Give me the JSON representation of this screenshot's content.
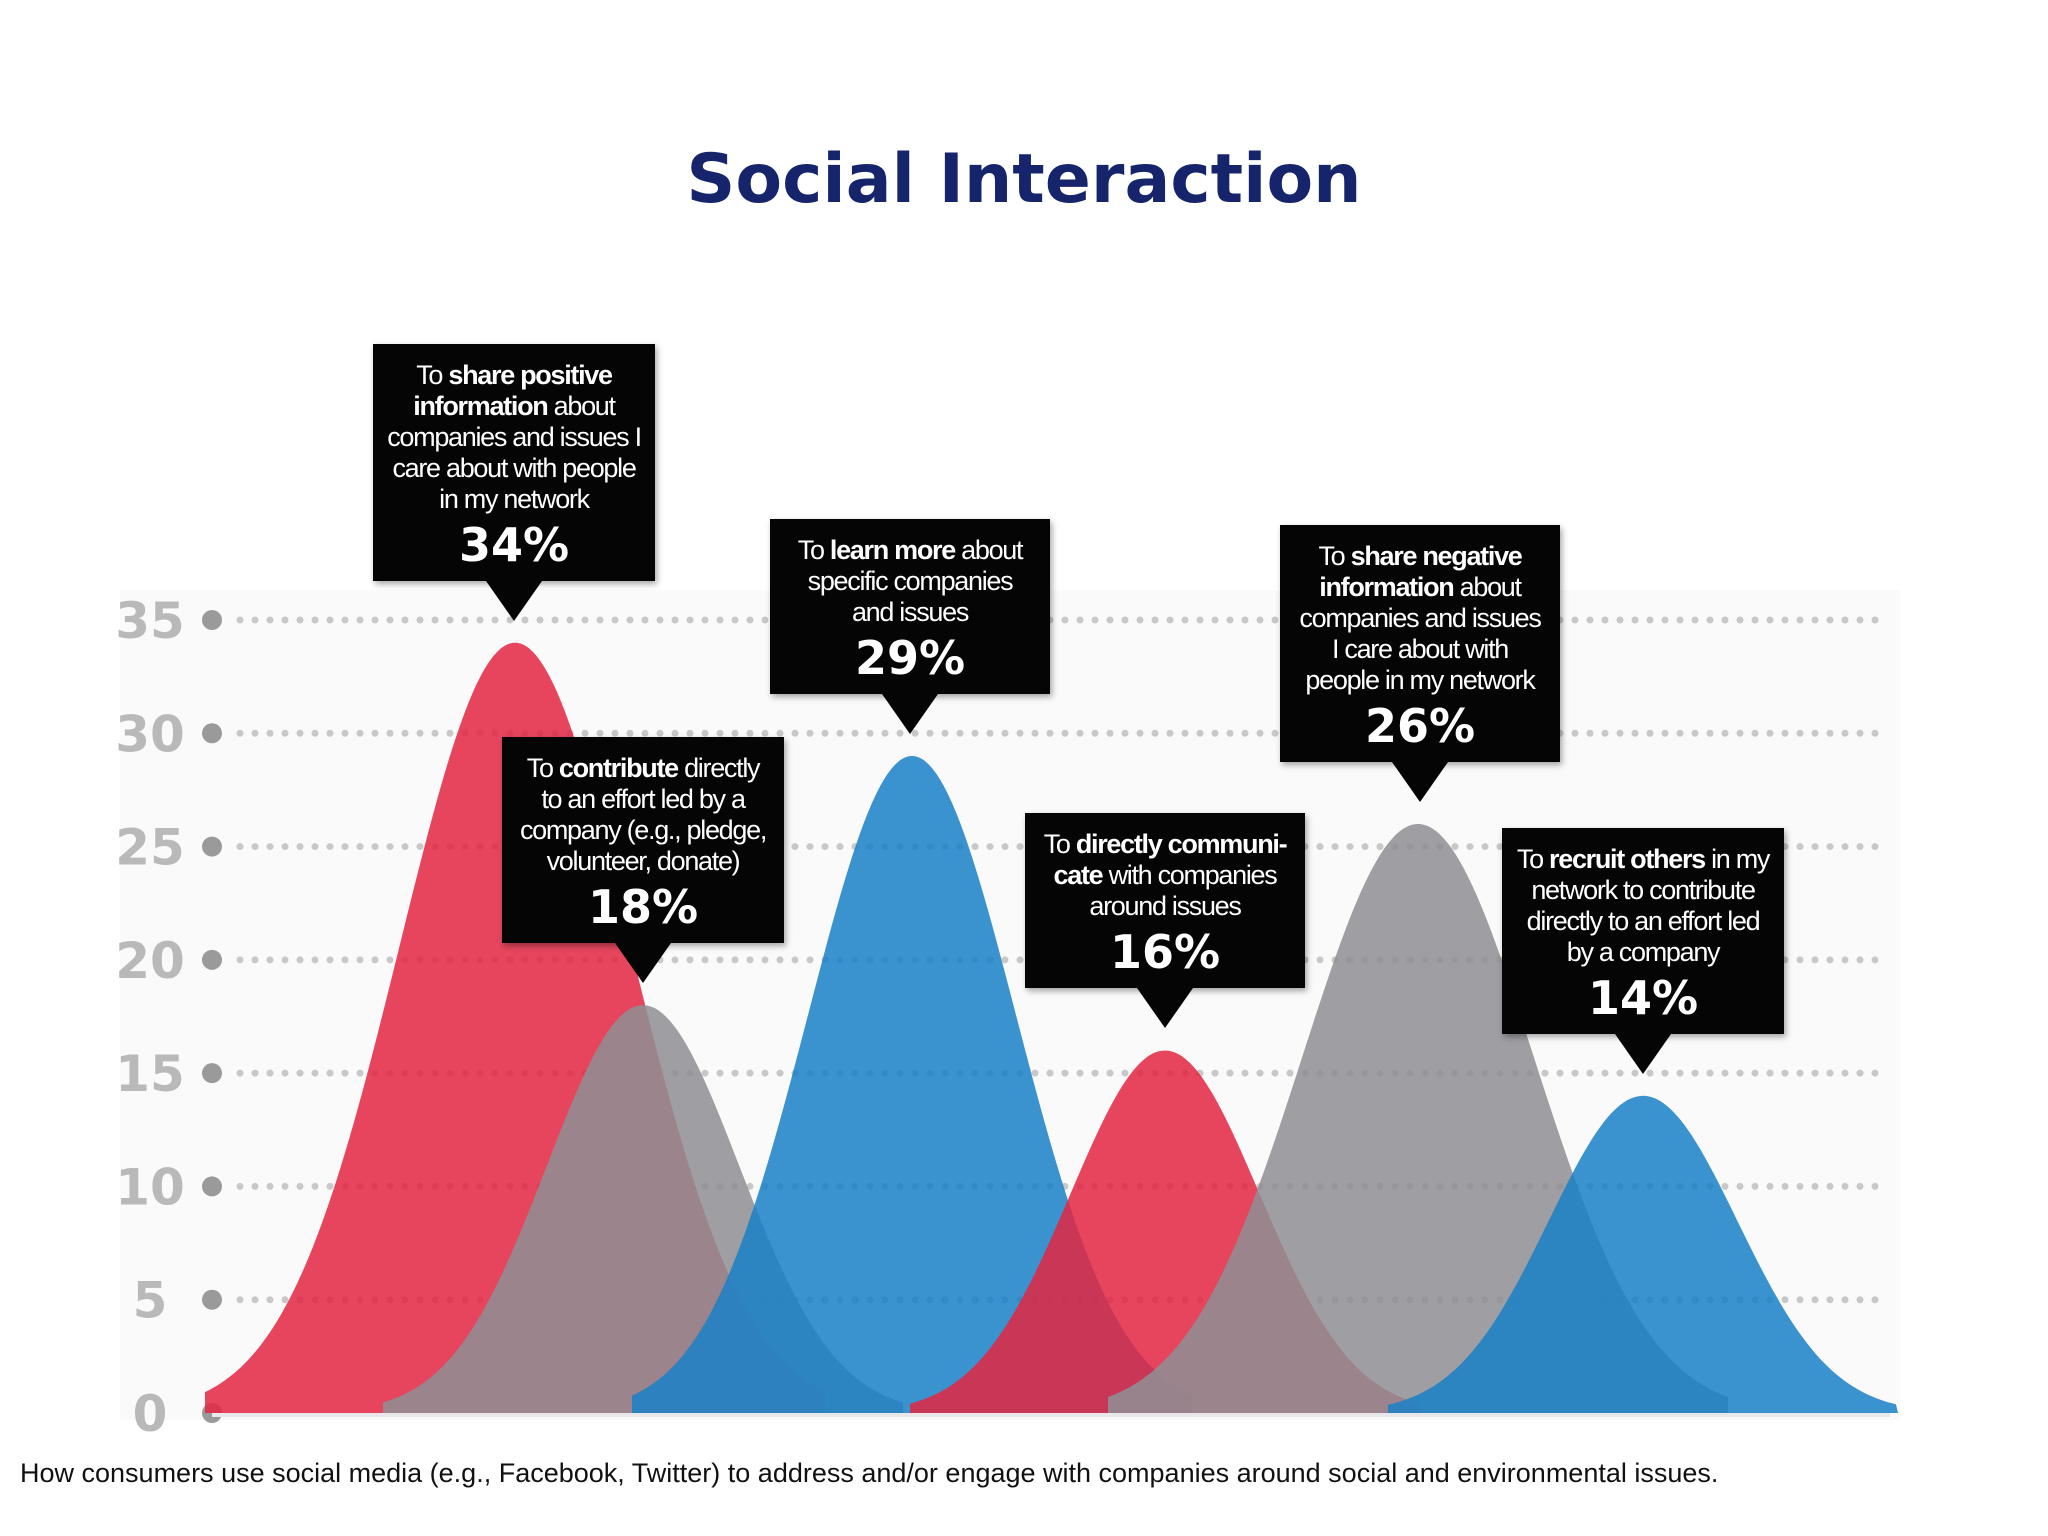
{
  "title": "Social Interaction",
  "caption": "How consumers use social media (e.g., Facebook, Twitter) to address and/or engage with companies around social and environmental issues.",
  "colors": {
    "title": "#16256b",
    "red": "#e22642",
    "gray": "#8f8f94",
    "blue": "#1a80c6",
    "grid": "#c8c8c8",
    "callout_bg": "#050505"
  },
  "chart_data": {
    "type": "area",
    "ylim": [
      0,
      35
    ],
    "yticks": [
      "0",
      "5",
      "10",
      "15",
      "20",
      "25",
      "30",
      "35"
    ],
    "grid": true,
    "series": [
      {
        "label_parts": [
          {
            "text": "To "
          },
          {
            "text": "share positive",
            "bold": true
          },
          {
            "text": " "
          },
          {
            "text": "information",
            "bold": true
          },
          {
            "text": " about companies and issues I care about with people in my network"
          }
        ],
        "value_label": "34%",
        "value": 34,
        "color": "red"
      },
      {
        "label_parts": [
          {
            "text": "To "
          },
          {
            "text": "contribute",
            "bold": true
          },
          {
            "text": " directly to an effort led by a company (e.g., pledge, volunteer, donate)"
          }
        ],
        "value_label": "18%",
        "value": 18,
        "color": "gray"
      },
      {
        "label_parts": [
          {
            "text": "To "
          },
          {
            "text": "learn more",
            "bold": true
          },
          {
            "text": " about specific companies and issues"
          }
        ],
        "value_label": "29%",
        "value": 29,
        "color": "blue"
      },
      {
        "label_parts": [
          {
            "text": "To "
          },
          {
            "text": "directly communi-cate",
            "bold": true
          },
          {
            "text": " with companies around issues"
          }
        ],
        "value_label": "16%",
        "value": 16,
        "color": "red"
      },
      {
        "label_parts": [
          {
            "text": "To "
          },
          {
            "text": "share negative",
            "bold": true
          },
          {
            "text": " "
          },
          {
            "text": "information",
            "bold": true
          },
          {
            "text": " about companies and issues I care about with people in my network"
          }
        ],
        "value_label": "26%",
        "value": 26,
        "color": "gray"
      },
      {
        "label_parts": [
          {
            "text": "To "
          },
          {
            "text": "recruit others",
            "bold": true
          },
          {
            "text": " in my network to contribute directly to an effort led by a company"
          }
        ],
        "value_label": "14%",
        "value": 14,
        "color": "blue"
      }
    ]
  }
}
